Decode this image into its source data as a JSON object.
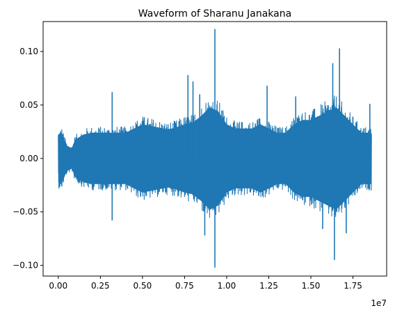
{
  "chart_data": {
    "type": "line",
    "title": "Waveform of Sharanu Janakana",
    "xlabel": "",
    "ylabel": "",
    "x_offset_label": "1e7",
    "xlim": [
      -0.09,
      1.95
    ],
    "ylim": [
      -0.11,
      0.128
    ],
    "x_ticks": [
      0.0,
      0.25,
      0.5,
      0.75,
      1.0,
      1.25,
      1.5,
      1.75
    ],
    "x_tick_labels": [
      "0.00",
      "0.25",
      "0.50",
      "0.75",
      "1.00",
      "1.25",
      "1.50",
      "1.75"
    ],
    "y_ticks": [
      -0.1,
      -0.05,
      0.0,
      0.05,
      0.1
    ],
    "y_tick_labels": [
      "−0.10",
      "−0.05",
      "0.00",
      "0.05",
      "0.10"
    ],
    "grid": false,
    "line_color": "#1f77b4",
    "series": [
      {
        "name": "",
        "x_range": [
          0.0,
          1.86
        ],
        "envelope": {
          "x": [
            0.0,
            0.02,
            0.05,
            0.08,
            0.1,
            0.15,
            0.2,
            0.25,
            0.3,
            0.35,
            0.4,
            0.45,
            0.5,
            0.55,
            0.6,
            0.65,
            0.7,
            0.75,
            0.8,
            0.85,
            0.9,
            0.95,
            1.0,
            1.05,
            1.1,
            1.15,
            1.2,
            1.25,
            1.3,
            1.35,
            1.4,
            1.45,
            1.5,
            1.55,
            1.6,
            1.65,
            1.7,
            1.75,
            1.8,
            1.85,
            1.86
          ],
          "upper": [
            0.028,
            0.03,
            0.015,
            0.012,
            0.022,
            0.028,
            0.03,
            0.03,
            0.03,
            0.03,
            0.03,
            0.035,
            0.04,
            0.038,
            0.036,
            0.034,
            0.036,
            0.04,
            0.042,
            0.05,
            0.06,
            0.055,
            0.04,
            0.035,
            0.035,
            0.035,
            0.04,
            0.035,
            0.03,
            0.03,
            0.04,
            0.045,
            0.045,
            0.05,
            0.055,
            0.06,
            0.05,
            0.04,
            0.03,
            0.03,
            0.03
          ],
          "lower": [
            -0.028,
            -0.03,
            -0.015,
            -0.012,
            -0.022,
            -0.028,
            -0.03,
            -0.03,
            -0.03,
            -0.03,
            -0.03,
            -0.035,
            -0.04,
            -0.038,
            -0.036,
            -0.034,
            -0.036,
            -0.04,
            -0.042,
            -0.05,
            -0.06,
            -0.055,
            -0.04,
            -0.035,
            -0.035,
            -0.035,
            -0.04,
            -0.035,
            -0.03,
            -0.03,
            -0.04,
            -0.045,
            -0.045,
            -0.05,
            -0.055,
            -0.06,
            -0.05,
            -0.04,
            -0.03,
            -0.03,
            -0.03
          ]
        },
        "peaks": [
          {
            "x": 0.32,
            "y": 0.062
          },
          {
            "x": 0.32,
            "y": -0.058
          },
          {
            "x": 0.77,
            "y": 0.078
          },
          {
            "x": 0.8,
            "y": 0.072
          },
          {
            "x": 0.84,
            "y": 0.06
          },
          {
            "x": 0.87,
            "y": -0.072
          },
          {
            "x": 0.93,
            "y": 0.121
          },
          {
            "x": 0.93,
            "y": -0.102
          },
          {
            "x": 1.24,
            "y": 0.068
          },
          {
            "x": 1.41,
            "y": 0.058
          },
          {
            "x": 1.57,
            "y": -0.066
          },
          {
            "x": 1.63,
            "y": 0.089
          },
          {
            "x": 1.64,
            "y": -0.095
          },
          {
            "x": 1.67,
            "y": 0.103
          },
          {
            "x": 1.71,
            "y": -0.07
          },
          {
            "x": 1.85,
            "y": 0.051
          }
        ]
      }
    ]
  }
}
